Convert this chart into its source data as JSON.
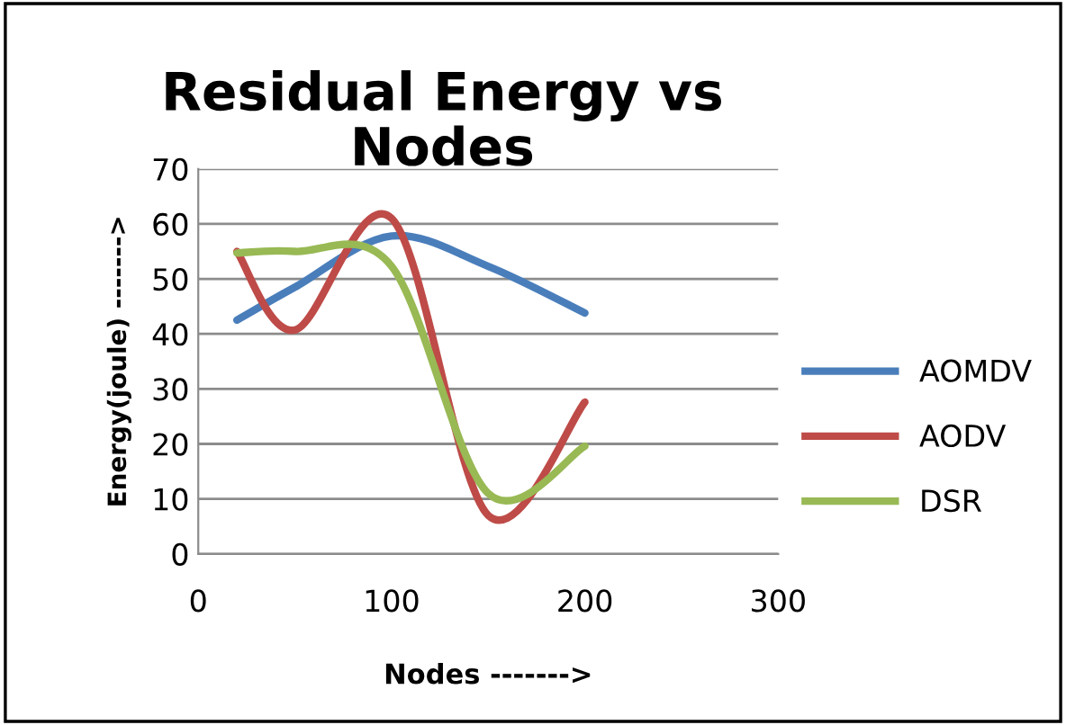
{
  "chart_data": {
    "type": "line",
    "title": "Residual Energy vs\nNodes",
    "xlabel": "Nodes ------->",
    "ylabel": "Energy(joule) ------->",
    "x": [
      20,
      50,
      100,
      150,
      200
    ],
    "series": [
      {
        "name": "AOMDV",
        "color": "#4a7ebb",
        "values": [
          42.5,
          48.5,
          57.8,
          52.3,
          43.8
        ]
      },
      {
        "name": "AODV",
        "color": "#be4b48",
        "values": [
          55,
          40.7,
          61,
          7,
          27.6
        ]
      },
      {
        "name": "DSR",
        "color": "#98b954",
        "values": [
          54.7,
          55,
          52.3,
          11,
          19.6
        ]
      }
    ],
    "xlim": [
      0,
      300
    ],
    "xticks": [
      0,
      100,
      200,
      300
    ],
    "ylim": [
      0,
      70
    ],
    "yticks": [
      0,
      10,
      20,
      30,
      40,
      50,
      60,
      70
    ],
    "grid": "y",
    "legend": "right",
    "marker": "none",
    "line_style": "solid"
  }
}
